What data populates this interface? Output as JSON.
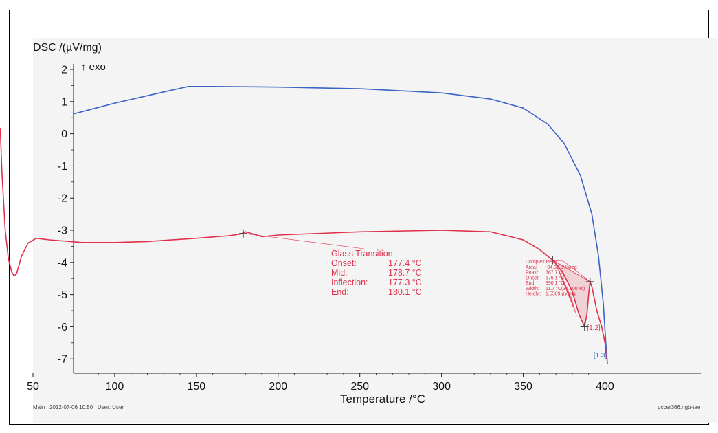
{
  "chart_data": {
    "type": "line",
    "ylabel": "DSC /(µV/mg)",
    "y_direction": "↑ exo",
    "xlabel": "Temperature /°C",
    "xlim": [
      28,
      404
    ],
    "ylim": [
      -7.45,
      2.05
    ],
    "xticks": [
      50,
      100,
      150,
      200,
      250,
      300,
      350,
      400
    ],
    "yticks": [
      2,
      1,
      0,
      -1,
      -2,
      -3,
      -4,
      -5,
      -6,
      -7
    ],
    "grid": false,
    "colors": {
      "blue": "#3a63c4",
      "red": "#e0304a"
    },
    "series": [
      {
        "color": "blue",
        "points": [
          [
            75,
            0.62
          ],
          [
            100,
            0.95
          ],
          [
            130,
            1.3
          ],
          [
            145,
            1.47
          ],
          [
            160,
            1.47
          ],
          [
            200,
            1.45
          ],
          [
            250,
            1.4
          ],
          [
            300,
            1.27
          ],
          [
            330,
            1.08
          ],
          [
            350,
            0.8
          ],
          [
            365,
            0.3
          ],
          [
            375,
            -0.3
          ],
          [
            385,
            -1.3
          ],
          [
            392,
            -2.5
          ],
          [
            396,
            -3.8
          ],
          [
            399,
            -5.3
          ],
          [
            400.5,
            -6.5
          ],
          [
            401.5,
            -7.15
          ]
        ]
      },
      {
        "color": "red",
        "points": [
          [
            30,
            0.18
          ],
          [
            31,
            -1.2
          ],
          [
            33,
            -3.0
          ],
          [
            35,
            -3.9
          ],
          [
            37,
            -4.3
          ],
          [
            38.5,
            -4.42
          ],
          [
            40,
            -4.35
          ],
          [
            43,
            -3.8
          ],
          [
            47,
            -3.4
          ],
          [
            52,
            -3.25
          ],
          [
            60,
            -3.3
          ],
          [
            80,
            -3.38
          ],
          [
            100,
            -3.38
          ],
          [
            120,
            -3.35
          ],
          [
            150,
            -3.25
          ],
          [
            170,
            -3.17
          ],
          [
            177,
            -3.12
          ],
          [
            180,
            -3.05
          ],
          [
            185,
            -3.12
          ],
          [
            190,
            -3.2
          ],
          [
            200,
            -3.15
          ],
          [
            250,
            -3.05
          ],
          [
            300,
            -3.0
          ],
          [
            330,
            -3.05
          ],
          [
            350,
            -3.3
          ],
          [
            360,
            -3.6
          ],
          [
            368,
            -3.93
          ],
          [
            374,
            -4.3
          ],
          [
            380,
            -4.9
          ],
          [
            384,
            -5.6
          ],
          [
            387.5,
            -6.0
          ],
          [
            389,
            -5.6
          ],
          [
            390,
            -5.0
          ],
          [
            390.9,
            -4.6
          ],
          [
            392,
            -4.75
          ],
          [
            395,
            -5.5
          ],
          [
            398,
            -6.0
          ],
          [
            400,
            -6.5
          ],
          [
            401,
            -7.0
          ]
        ]
      }
    ],
    "glass_transition": {
      "marker_x": 178.7,
      "marker_y": -3.1,
      "title": "Glass Transition:",
      "rows": [
        {
          "label": "Onset:",
          "value": "177.4 °C"
        },
        {
          "label": "Mid:",
          "value": "178.7 °C"
        },
        {
          "label": "Inflection:",
          "value": "177.3 °C"
        },
        {
          "label": "End:",
          "value": "180.1 °C"
        }
      ]
    },
    "complex_peak": {
      "markers": [
        [
          368,
          -3.93
        ],
        [
          387.5,
          -6.0
        ],
        [
          390.9,
          -4.6
        ]
      ],
      "title": "Complex Peak:",
      "rows": [
        {
          "label": "Area:",
          "value": "-94.38 µVs/mg"
        },
        {
          "label": "Peak*:",
          "value": "387.7 °C"
        },
        {
          "label": "Onset:",
          "value": "376.1 °C"
        },
        {
          "label": "End:",
          "value": "390.1 °C"
        },
        {
          "label": "Width:",
          "value": "11.7 °C(37.000 %)"
        },
        {
          "label": "Height:",
          "value": "1.5509 µV/mg"
        }
      ]
    },
    "segment_labels": [
      {
        "text": "[1.2]",
        "x": 389,
        "y": -6.1,
        "color": "red"
      },
      {
        "text": "[1.3]",
        "x": 393,
        "y": -6.95,
        "color": "blue"
      }
    ]
  },
  "footer": {
    "left": "Main   2012-07-06 10:50   User: User",
    "right": "pccer366.ngb-tee"
  }
}
